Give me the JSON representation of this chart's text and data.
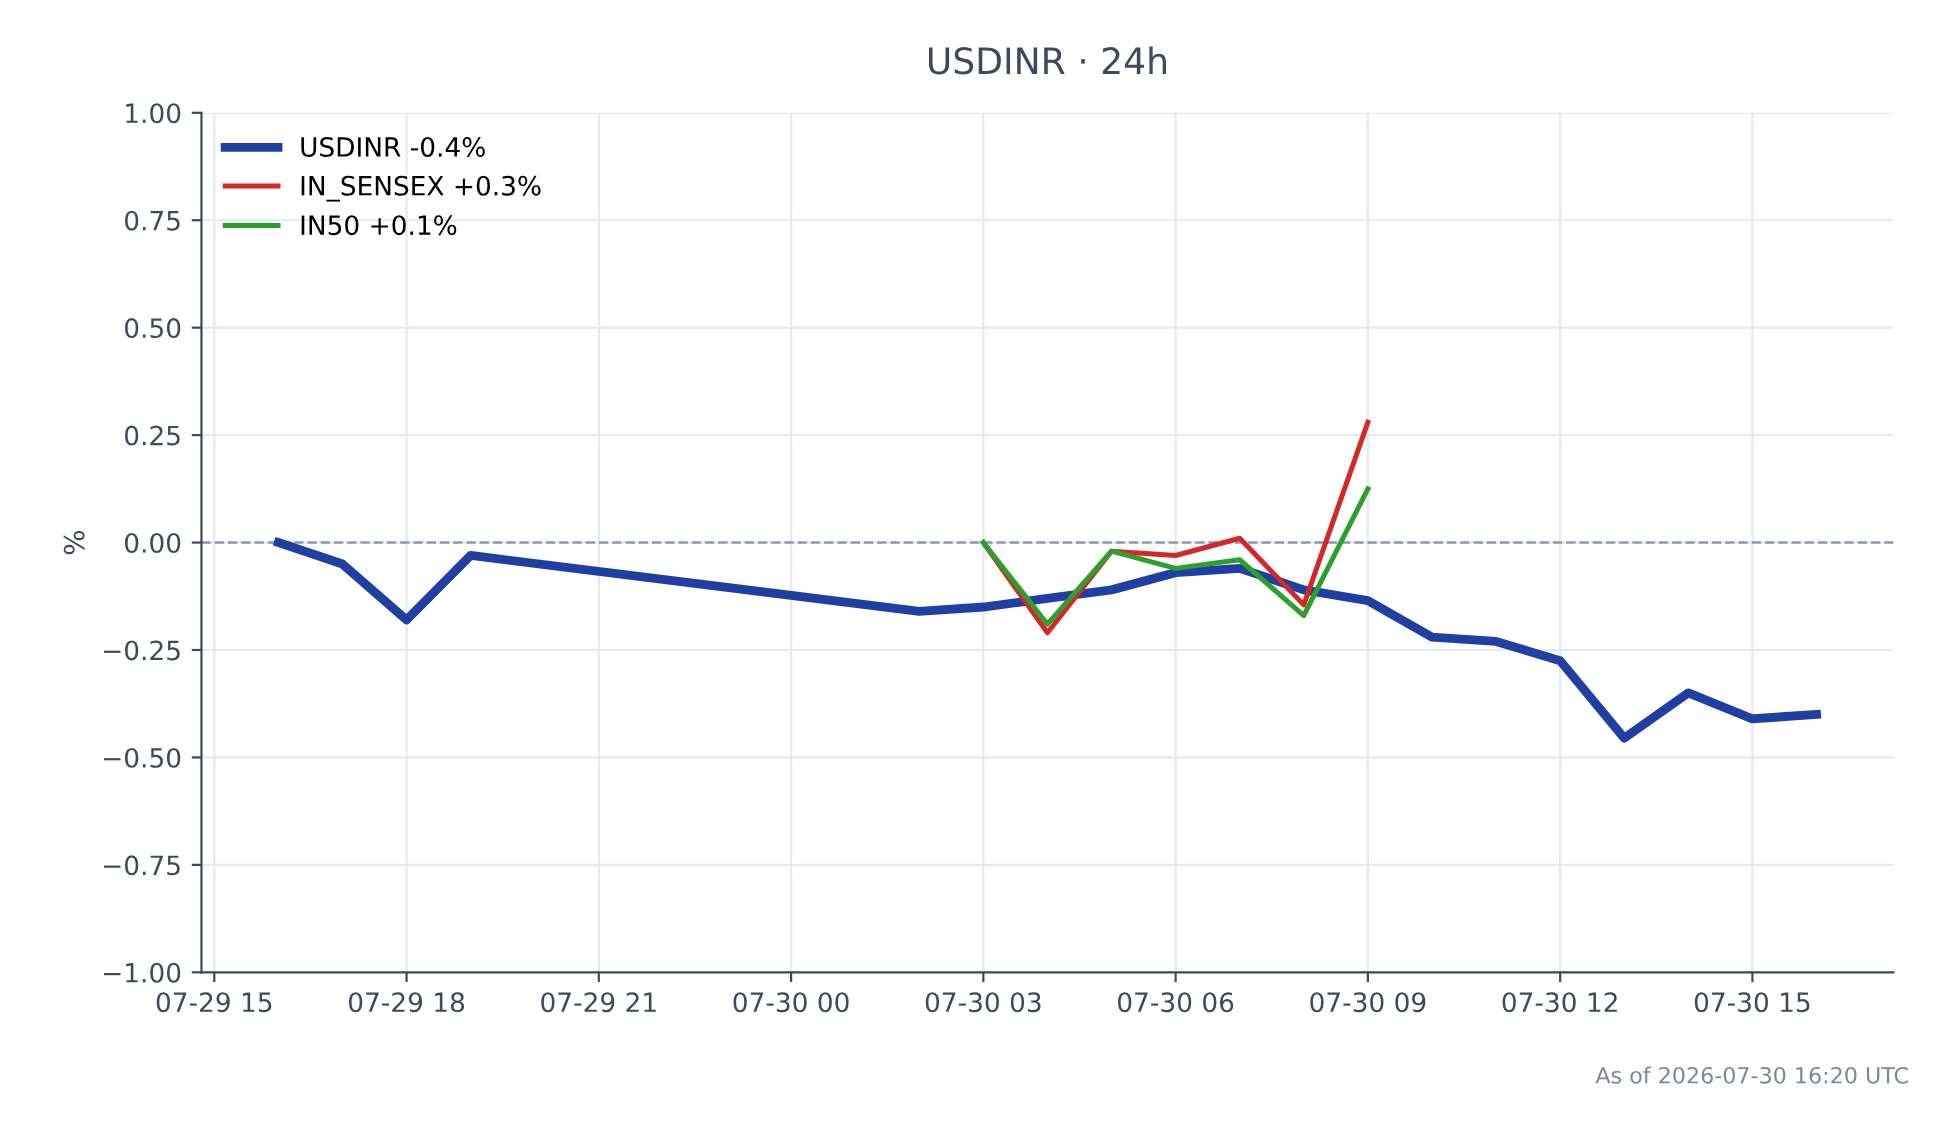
{
  "chart_data": {
    "type": "line",
    "title": "USDINR · 24h",
    "ylabel": "%",
    "annotations": [
      "As of 2026-07-30 16:20 UTC"
    ],
    "series": [
      {
        "name": "USDINR -0.4%",
        "color": "#1f3fa3",
        "x": [
          "2026-07-29T16:00",
          "2026-07-29T17:00",
          "2026-07-29T18:00",
          "2026-07-29T19:00",
          "2026-07-30T02:00",
          "2026-07-30T03:00",
          "2026-07-30T04:00",
          "2026-07-30T05:00",
          "2026-07-30T06:00",
          "2026-07-30T07:00",
          "2026-07-30T08:00",
          "2026-07-30T09:00",
          "2026-07-30T10:00",
          "2026-07-30T11:00",
          "2026-07-30T12:00",
          "2026-07-30T13:00",
          "2026-07-30T14:00",
          "2026-07-30T15:00",
          "2026-07-30T16:00"
        ],
        "values": [
          0,
          -0.05,
          -0.18,
          -0.03,
          -0.16,
          -0.15,
          -0.13,
          -0.11,
          -0.07,
          -0.06,
          -0.11,
          -0.135,
          -0.22,
          -0.23,
          -0.275,
          -0.455,
          -0.35,
          -0.41,
          -0.4
        ]
      },
      {
        "name": "IN_SENSEX +0.3%",
        "color": "#d62728",
        "x": [
          "2026-07-30T03:00",
          "2026-07-30T04:00",
          "2026-07-30T05:00",
          "2026-07-30T06:00",
          "2026-07-30T07:00",
          "2026-07-30T08:00",
          "2026-07-30T09:00"
        ],
        "values": [
          0,
          -0.21,
          -0.02,
          -0.03,
          0.01,
          -0.145,
          0.28
        ]
      },
      {
        "name": "IN50 +0.1%",
        "color": "#2ca02c",
        "x": [
          "2026-07-30T03:00",
          "2026-07-30T04:00",
          "2026-07-30T05:00",
          "2026-07-30T06:00",
          "2026-07-30T07:00",
          "2026-07-30T08:00",
          "2026-07-30T09:00"
        ],
        "values": [
          0,
          -0.19,
          -0.02,
          -0.06,
          -0.04,
          -0.17,
          0.125
        ]
      }
    ],
    "xlim": [
      "2026-07-29T14:48",
      "2026-07-30T17:12"
    ],
    "xticks": [
      {
        "value": "2026-07-29T15:00",
        "label": "07-29 15"
      },
      {
        "value": "2026-07-29T18:00",
        "label": "07-29 18"
      },
      {
        "value": "2026-07-29T21:00",
        "label": "07-29 21"
      },
      {
        "value": "2026-07-30T00:00",
        "label": "07-30 00"
      },
      {
        "value": "2026-07-30T03:00",
        "label": "07-30 03"
      },
      {
        "value": "2026-07-30T06:00",
        "label": "07-30 06"
      },
      {
        "value": "2026-07-30T09:00",
        "label": "07-30 09"
      },
      {
        "value": "2026-07-30T12:00",
        "label": "07-30 12"
      },
      {
        "value": "2026-07-30T15:00",
        "label": "07-30 15"
      }
    ],
    "ylim": [
      -1,
      1
    ],
    "yticks": [
      {
        "value": -1,
        "label": "−1.00"
      },
      {
        "value": -0.75,
        "label": "−0.75"
      },
      {
        "value": -0.5,
        "label": "−0.50"
      },
      {
        "value": -0.25,
        "label": "−0.25"
      },
      {
        "value": 0,
        "label": "0.00"
      },
      {
        "value": 0.25,
        "label": "0.25"
      },
      {
        "value": 0.5,
        "label": "0.50"
      },
      {
        "value": 0.75,
        "label": "0.75"
      },
      {
        "value": 1,
        "label": "1.00"
      }
    ],
    "ref_lines": [
      {
        "axis": "y",
        "value": 0,
        "color": "#8a9ab5",
        "line_style": "dashed"
      }
    ],
    "grid": true,
    "legend": "top left",
    "marker": "none",
    "line_style": "solid"
  }
}
